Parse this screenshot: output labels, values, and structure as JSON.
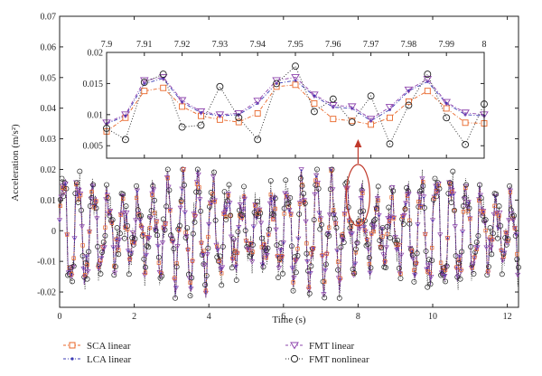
{
  "chart_data": [
    {
      "type": "line",
      "panel": "main",
      "xlabel": "Time (s)",
      "ylabel": "Acceleration (m/s²)",
      "xlim": [
        0,
        12.3
      ],
      "ylim": [
        -0.025,
        0.07
      ],
      "xticks": [
        "0",
        "2",
        "4",
        "6",
        "8",
        "10",
        "12"
      ],
      "xtick_values": [
        0,
        2,
        4,
        6,
        8,
        10,
        12
      ],
      "yticks": [
        "-0.02",
        "-0.01",
        "0",
        "0.01",
        "0.02",
        "0.03",
        "0.04",
        "0.05",
        "0.06",
        "0.07"
      ],
      "ytick_values": [
        -0.02,
        -0.01,
        0,
        0.01,
        0.02,
        0.03,
        0.04,
        0.05,
        0.06,
        0.07
      ],
      "signal": {
        "t_start": 0,
        "t_end": 12.3,
        "t_step": 0.02,
        "amplitude_envelope": [
          0.012,
          0.02
        ],
        "dominant_frequency_hz": 2.5,
        "peak_value": 0.02,
        "trough_value": -0.022
      },
      "series": [
        {
          "name": "SCA linear",
          "color": "#e8672a",
          "marker": "square",
          "line": "dash-dot"
        },
        {
          "name": "LCA linear",
          "color": "#3b3bb5",
          "marker": "dot",
          "line": "dash-dot"
        },
        {
          "name": "FMT linear",
          "color": "#8e44ad",
          "marker": "triangle-down",
          "line": "dash-dot"
        },
        {
          "name": "FMT nonlinear",
          "color": "#222222",
          "marker": "circle",
          "line": "dotted"
        }
      ],
      "annotation": {
        "type": "ellipse+arrow",
        "center_x": 8.0,
        "color": "#c0392b"
      }
    },
    {
      "type": "line",
      "panel": "inset",
      "xlim": [
        7.9,
        8.0
      ],
      "ylim": [
        0.003,
        0.02
      ],
      "xticks": [
        "7.9",
        "7.91",
        "7.92",
        "7.93",
        "7.94",
        "7.95",
        "7.96",
        "7.97",
        "7.98",
        "7.99",
        "8"
      ],
      "xtick_values": [
        7.9,
        7.91,
        7.92,
        7.93,
        7.94,
        7.95,
        7.96,
        7.97,
        7.98,
        7.99,
        8.0
      ],
      "yticks": [
        "0.005",
        "0.01",
        "0.015",
        "0.02"
      ],
      "ytick_values": [
        0.005,
        0.01,
        0.015,
        0.02
      ],
      "x": [
        7.9,
        7.905,
        7.91,
        7.915,
        7.92,
        7.925,
        7.93,
        7.935,
        7.94,
        7.945,
        7.95,
        7.955,
        7.96,
        7.965,
        7.97,
        7.975,
        7.98,
        7.985,
        7.99,
        7.995,
        8.0
      ],
      "series": [
        {
          "name": "SCA linear",
          "values": [
            0.0073,
            0.0095,
            0.0138,
            0.0143,
            0.0113,
            0.0098,
            0.0092,
            0.0088,
            0.0102,
            0.0145,
            0.0148,
            0.0118,
            0.0093,
            0.009,
            0.0084,
            0.0095,
            0.0121,
            0.0138,
            0.011,
            0.0087,
            0.0086
          ]
        },
        {
          "name": "LCA linear",
          "values": [
            0.0085,
            0.0098,
            0.015,
            0.0158,
            0.012,
            0.0103,
            0.0098,
            0.01,
            0.0118,
            0.015,
            0.0155,
            0.013,
            0.0112,
            0.011,
            0.009,
            0.0108,
            0.0138,
            0.0153,
            0.0118,
            0.01,
            0.0098
          ]
        },
        {
          "name": "FMT linear",
          "values": [
            0.0087,
            0.01,
            0.0155,
            0.016,
            0.0123,
            0.0105,
            0.01,
            0.0102,
            0.0122,
            0.0155,
            0.016,
            0.0132,
            0.0115,
            0.0113,
            0.0093,
            0.0112,
            0.014,
            0.0157,
            0.012,
            0.0103,
            0.01
          ]
        },
        {
          "name": "FMT nonlinear",
          "values": [
            0.0078,
            0.006,
            0.0152,
            0.0165,
            0.008,
            0.0083,
            0.0145,
            0.0095,
            0.006,
            0.015,
            0.0178,
            0.0105,
            0.0125,
            0.0088,
            0.013,
            0.0053,
            0.0115,
            0.0165,
            0.0095,
            0.0052,
            0.0117
          ]
        }
      ]
    }
  ],
  "legend": [
    {
      "name": "SCA linear",
      "color": "#e8672a",
      "marker": "square"
    },
    {
      "name": "LCA linear",
      "color": "#3b3bb5",
      "marker": "dot"
    },
    {
      "name": "FMT linear",
      "color": "#8e44ad",
      "marker": "triangle-down"
    },
    {
      "name": "FMT nonlinear",
      "color": "#222222",
      "marker": "circle"
    }
  ]
}
